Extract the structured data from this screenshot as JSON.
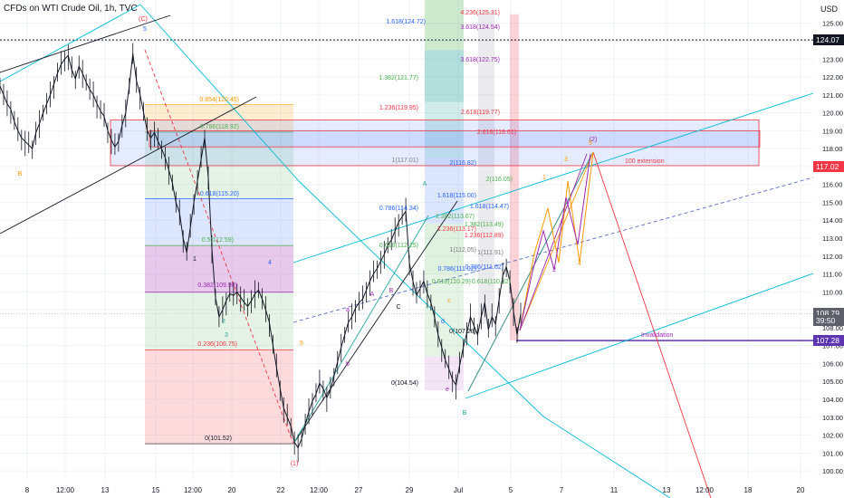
{
  "header": {
    "title": "CFDs on WTI Crude Oil, 1h, TVC",
    "currency": "USD"
  },
  "price_badges": [
    {
      "label": "124.07",
      "price": 124.07,
      "color": "#131722"
    },
    {
      "label": "117.02",
      "price": 117.02,
      "color": "#f23645"
    },
    {
      "label": "108.79",
      "price": 108.79,
      "color": "#5d606b"
    },
    {
      "label": "39:50",
      "price": 108.4,
      "color": "#5d606b"
    },
    {
      "label": "107.28",
      "price": 107.28,
      "color": "#5e35b1"
    }
  ],
  "chart_data": {
    "type": "line",
    "title": "CFDs on WTI Crude Oil, 1h, TVC",
    "ylim": [
      99.5,
      126.3
    ],
    "y_ticks": [
      100,
      101,
      102,
      103,
      104,
      105,
      106,
      107,
      108,
      109,
      110,
      111,
      112,
      113,
      114,
      115,
      116,
      117,
      118,
      119,
      120,
      121,
      122,
      123,
      124,
      125
    ],
    "x_ticks": [
      "8",
      "12:00",
      "13",
      "15",
      "12:00",
      "20",
      "22",
      "12:00",
      "27",
      "29",
      "Jul",
      "5",
      "7",
      "11",
      "13",
      "12:00",
      "18",
      "20"
    ],
    "series": [
      {
        "name": "price",
        "values": [
          121.5,
          121.0,
          120.5,
          120.2,
          119.5,
          119.0,
          118.6,
          118.4,
          118.2,
          118.0,
          118.9,
          119.4,
          120.0,
          120.5,
          121.0,
          121.6,
          122.2,
          122.7,
          123.0,
          123.2,
          122.4,
          121.9,
          122.6,
          122.2,
          121.7,
          121.3,
          121.0,
          120.5,
          120.1,
          119.8,
          119.0,
          118.5,
          118.1,
          118.4,
          119.3,
          120.0,
          121.5,
          123.3,
          121.8,
          121.0,
          120.0,
          119.0,
          118.6,
          118.9,
          118.4,
          118.0,
          117.5,
          116.8,
          116.1,
          115.0,
          114.4,
          113.0,
          112.2,
          113.6,
          115.0,
          116.2,
          117.4,
          118.6,
          116.4,
          112.4,
          109.7,
          108.6,
          109.0,
          109.5,
          109.9,
          109.8,
          110.0,
          109.7,
          109.4,
          109.2,
          109.5,
          109.9,
          110.1,
          109.6,
          109.0,
          108.3,
          107.0,
          105.8,
          104.6,
          103.5,
          103.0,
          102.5,
          101.6,
          101.3,
          101.8,
          102.6,
          103.3,
          103.9,
          104.3,
          104.9,
          104.6,
          104.1,
          104.5,
          105.3,
          106.1,
          106.9,
          107.6,
          108.3,
          108.6,
          109.1,
          109.4,
          109.6,
          110.1,
          110.6,
          111.0,
          111.3,
          111.7,
          112.1,
          112.6,
          112.9,
          113.4,
          113.9,
          114.2,
          114.5,
          111.6,
          110.6,
          109.8,
          110.2,
          110.6,
          109.9,
          109.4,
          108.6,
          107.6,
          106.9,
          106.2,
          105.7,
          105.1,
          104.8,
          105.9,
          106.9,
          107.7,
          108.6,
          108.1,
          107.6,
          108.6,
          109.4,
          107.9,
          108.6,
          108.2,
          109.6,
          110.9,
          111.4,
          110.6,
          108.9,
          107.6,
          108.79
        ],
        "color": "#131722"
      }
    ],
    "fib_retracement": [
      {
        "level": "1.618",
        "price": 124.72,
        "label": "1.618(124.72)",
        "color": "#2962ff"
      },
      {
        "level": "1.382",
        "price": 121.77,
        "label": "1.382(121.77)",
        "color": "#4caf50"
      },
      {
        "level": "1.236",
        "price": 119.95,
        "label": "1.236(119.95)",
        "color": "#f23645"
      },
      {
        "level": "1",
        "price": 117.01,
        "label": "1(117.01)",
        "color": "#787b86"
      },
      {
        "level": "0.854",
        "price": 120.45,
        "label": "0.854(120.45)",
        "color": "#ff9800"
      },
      {
        "level": "0.786",
        "price": 118.92,
        "label": "0.786(118.92)",
        "color": "#4caf50"
      },
      {
        "level": "0.618",
        "price": 115.2,
        "label": "0.618(115.20)",
        "color": "#2962ff"
      },
      {
        "level": "0.5",
        "price": 112.59,
        "label": "0.5(112.59)",
        "color": "#4caf50"
      },
      {
        "level": "0.382",
        "price": 109.98,
        "label": "0.382(109.98)",
        "color": "#9c27b0"
      },
      {
        "level": "0.236",
        "price": 106.75,
        "label": "0.236(106.75)",
        "color": "#f23645"
      },
      {
        "level": "0",
        "price": 101.52,
        "label": "0(101.52)",
        "color": "#131722"
      }
    ],
    "fib_extension": [
      {
        "label": "4.236(125.31)",
        "color": "#f23645"
      },
      {
        "label": "3.618(124.54)",
        "color": "#9c27b0"
      },
      {
        "label": "3.618(122.75)",
        "color": "#9c27b0"
      },
      {
        "label": "2.618(119.77)",
        "color": "#f23645"
      },
      {
        "label": "2.618(118.61)",
        "color": "#f23645"
      },
      {
        "label": "2(116.82)",
        "color": "#2962ff"
      },
      {
        "label": "2(116.05)",
        "color": "#4caf50"
      },
      {
        "label": "1.618(115.00)",
        "color": "#2962ff"
      },
      {
        "label": "1.618(114.47)",
        "color": "#2962ff"
      },
      {
        "label": "0.786(114.34)",
        "color": "#2962ff"
      },
      {
        "label": "1.382(113.67)",
        "color": "#4caf50"
      },
      {
        "label": "1.382(113.49)",
        "color": "#4caf50"
      },
      {
        "label": "1.236(113.17)",
        "color": "#f23645"
      },
      {
        "label": "1.236(112.89)",
        "color": "#f23645"
      },
      {
        "label": "0.618(112.25)",
        "color": "#4caf50"
      },
      {
        "label": "1(112.05)",
        "color": "#787b86"
      },
      {
        "label": "1(111.91)",
        "color": "#787b86"
      },
      {
        "label": "0.786(111.02)",
        "color": "#2962ff"
      },
      {
        "label": "0.786(111.02)",
        "color": "#2962ff"
      },
      {
        "label": "0.618(110.29)",
        "color": "#4caf50"
      },
      {
        "label": "0.618(110.32)",
        "color": "#4caf50"
      },
      {
        "label": "0(107.28)",
        "color": "#131722"
      },
      {
        "label": "0(104.54)",
        "color": "#131722"
      }
    ],
    "annotations": {
      "extension_note": "100 extension",
      "invalidation_note": "Invalidation",
      "wave_labels": [
        "(C)",
        "5",
        "B",
        "1",
        "2",
        "3",
        "4",
        "5",
        "(1)",
        "A",
        "B",
        "C",
        "a",
        "b",
        "c",
        "d",
        "e",
        "(2)",
        "1",
        "2",
        "3",
        "4",
        "5",
        "A",
        "B"
      ]
    }
  }
}
